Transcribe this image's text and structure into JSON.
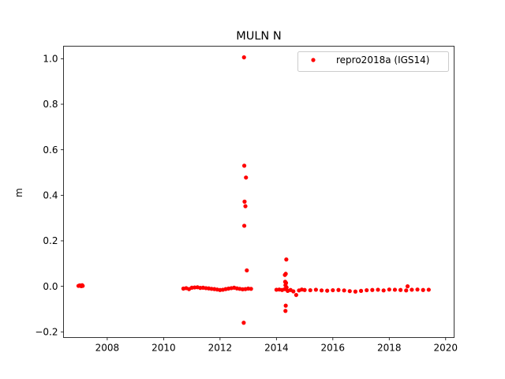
{
  "chart_data": {
    "type": "scatter",
    "title": "MULN N",
    "xlabel": "",
    "ylabel": "m",
    "xlim": [
      2006.45,
      2020.3
    ],
    "ylim": [
      -0.225,
      1.055
    ],
    "xticks": [
      2008,
      2010,
      2012,
      2014,
      2016,
      2018,
      2020
    ],
    "xtick_labels": [
      "2008",
      "2010",
      "2012",
      "2014",
      "2016",
      "2018",
      "2020"
    ],
    "yticks": [
      -0.2,
      0.0,
      0.2,
      0.4,
      0.6,
      0.8,
      1.0
    ],
    "ytick_labels": [
      "−0.2",
      "0.0",
      "0.2",
      "0.4",
      "0.6",
      "0.8",
      "1.0"
    ],
    "grid": false,
    "legend_position": "top-right",
    "series": [
      {
        "name": "repro2018a (IGS14)",
        "color": "#ff0000",
        "marker": "circle",
        "points": [
          [
            2006.98,
            0.002
          ],
          [
            2007.02,
            0.004
          ],
          [
            2007.05,
            0.003
          ],
          [
            2007.08,
            0.001
          ],
          [
            2007.11,
            0.005
          ],
          [
            2007.13,
            0.002
          ],
          [
            2010.7,
            -0.01
          ],
          [
            2010.8,
            -0.008
          ],
          [
            2010.9,
            -0.012
          ],
          [
            2011.0,
            -0.006
          ],
          [
            2011.1,
            -0.005
          ],
          [
            2011.2,
            -0.004
          ],
          [
            2011.3,
            -0.007
          ],
          [
            2011.4,
            -0.006
          ],
          [
            2011.5,
            -0.008
          ],
          [
            2011.6,
            -0.009
          ],
          [
            2011.7,
            -0.011
          ],
          [
            2011.8,
            -0.012
          ],
          [
            2011.9,
            -0.014
          ],
          [
            2012.0,
            -0.016
          ],
          [
            2012.1,
            -0.015
          ],
          [
            2012.2,
            -0.012
          ],
          [
            2012.3,
            -0.01
          ],
          [
            2012.4,
            -0.008
          ],
          [
            2012.5,
            -0.006
          ],
          [
            2012.6,
            -0.009
          ],
          [
            2012.7,
            -0.011
          ],
          [
            2012.8,
            -0.013
          ],
          [
            2012.9,
            -0.012
          ],
          [
            2013.0,
            -0.01
          ],
          [
            2013.1,
            -0.011
          ],
          [
            2012.85,
            1.006
          ],
          [
            2012.86,
            0.53
          ],
          [
            2012.92,
            0.478
          ],
          [
            2012.87,
            0.372
          ],
          [
            2012.9,
            0.352
          ],
          [
            2012.86,
            0.266
          ],
          [
            2012.95,
            0.07
          ],
          [
            2012.84,
            -0.16
          ],
          [
            2014.0,
            -0.015
          ],
          [
            2014.1,
            -0.014
          ],
          [
            2014.2,
            -0.016
          ],
          [
            2014.3,
            -0.012
          ],
          [
            2014.35,
            0.118
          ],
          [
            2014.33,
            0.055
          ],
          [
            2014.3,
            0.05
          ],
          [
            2014.31,
            0.02
          ],
          [
            2014.34,
            0.015
          ],
          [
            2014.32,
            0.005
          ],
          [
            2014.36,
            -0.005
          ],
          [
            2014.33,
            -0.085
          ],
          [
            2014.32,
            -0.108
          ],
          [
            2014.4,
            -0.02
          ],
          [
            2014.5,
            -0.016
          ],
          [
            2014.6,
            -0.022
          ],
          [
            2014.7,
            -0.038
          ],
          [
            2014.8,
            -0.018
          ],
          [
            2014.9,
            -0.014
          ],
          [
            2015.0,
            -0.016
          ],
          [
            2015.2,
            -0.017
          ],
          [
            2015.4,
            -0.015
          ],
          [
            2015.6,
            -0.018
          ],
          [
            2015.8,
            -0.019
          ],
          [
            2016.0,
            -0.017
          ],
          [
            2016.2,
            -0.016
          ],
          [
            2016.4,
            -0.018
          ],
          [
            2016.6,
            -0.021
          ],
          [
            2016.8,
            -0.023
          ],
          [
            2017.0,
            -0.02
          ],
          [
            2017.2,
            -0.017
          ],
          [
            2017.4,
            -0.016
          ],
          [
            2017.6,
            -0.015
          ],
          [
            2017.8,
            -0.018
          ],
          [
            2018.0,
            -0.014
          ],
          [
            2018.2,
            -0.015
          ],
          [
            2018.4,
            -0.016
          ],
          [
            2018.6,
            -0.018
          ],
          [
            2018.65,
            0.0
          ],
          [
            2018.8,
            -0.015
          ],
          [
            2019.0,
            -0.014
          ],
          [
            2019.2,
            -0.016
          ],
          [
            2019.4,
            -0.015
          ]
        ]
      }
    ]
  }
}
